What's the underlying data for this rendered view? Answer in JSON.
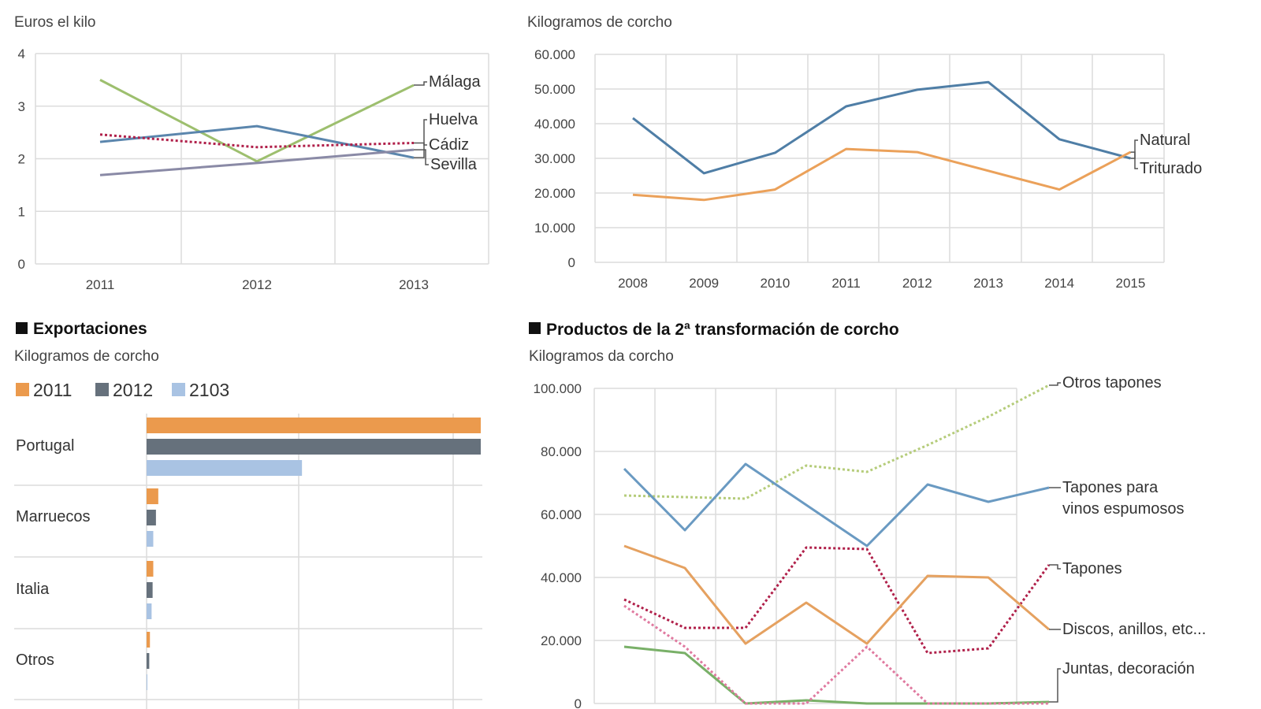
{
  "chart_data": [
    {
      "type": "line",
      "subtitle": "Euros el kilo",
      "categories": [
        "2011",
        "2012",
        "2013"
      ],
      "yticks": [
        "0",
        "1",
        "2",
        "3",
        "4"
      ],
      "ylim": [
        0,
        4
      ],
      "grid": true,
      "series": [
        {
          "name": "Málaga",
          "values": [
            3.5,
            1.95,
            3.4
          ],
          "color": "#9dbf6e",
          "dash": false
        },
        {
          "name": "Huelva",
          "values": [
            2.32,
            2.62,
            2.02
          ],
          "color": "#5b86ad",
          "dash": false
        },
        {
          "name": "Cádiz",
          "values": [
            2.46,
            2.22,
            2.3
          ],
          "color": "#b0204a",
          "dash": true
        },
        {
          "name": "Sevilla",
          "values": [
            1.69,
            1.92,
            2.17
          ],
          "color": "#8a8aa6",
          "dash": false
        }
      ]
    },
    {
      "type": "line",
      "subtitle": "Kilogramos de corcho",
      "categories": [
        "2008",
        "2009",
        "2010",
        "2011",
        "2012",
        "2013",
        "2014",
        "2015"
      ],
      "yticks": [
        "0",
        "10.000",
        "20.000",
        "30.000",
        "40.000",
        "50.000",
        "60.000"
      ],
      "ylim": [
        0,
        60000
      ],
      "grid": true,
      "series": [
        {
          "name": "Natural",
          "values": [
            41600,
            25700,
            31600,
            45000,
            49800,
            52000,
            35500,
            30000
          ],
          "color": "#4f7ea6",
          "dash": false
        },
        {
          "name": "Triturado",
          "values": [
            19500,
            18000,
            21000,
            32700,
            31800,
            26400,
            21000,
            31800
          ],
          "color": "#eba15a",
          "dash": false
        }
      ]
    },
    {
      "type": "bar",
      "title": "Exportaciones",
      "subtitle": "Kilogramos de corcho",
      "orientation": "horizontal",
      "categories": [
        "Portugal",
        "Marruecos",
        "Italia",
        "Otros"
      ],
      "grid": true,
      "legend": "top-left",
      "series": [
        {
          "name": "2011",
          "values": [
            100,
            3.5,
            2,
            1
          ],
          "color": "#eb9a4d"
        },
        {
          "name": "2012",
          "values": [
            100,
            2.8,
            1.8,
            0.8
          ],
          "color": "#66717c"
        },
        {
          "name": "2103",
          "values": [
            46.5,
            2,
            1.5,
            0
          ],
          "color": "#a9c3e3"
        }
      ]
    },
    {
      "type": "line",
      "title": "Productos de la 2ª transformación de corcho",
      "subtitle": "Kilogramos da corcho",
      "yticks": [
        "0",
        "20.000",
        "40.000",
        "60.000",
        "80.000",
        "100.000"
      ],
      "ylim": [
        0,
        100000
      ],
      "grid": true,
      "series": [
        {
          "name": "Otros tapones",
          "values": [
            66000,
            65500,
            65000,
            75500,
            73500,
            82000,
            91000,
            101000
          ],
          "color": "#b5cc7a",
          "dash": true
        },
        {
          "name": "Tapones para vinos espumosos",
          "values": [
            74500,
            55000,
            76000,
            63000,
            50000,
            69500,
            64000,
            68500
          ],
          "color": "#6a9ac2",
          "dash": false
        },
        {
          "name": "Tapones",
          "values": [
            33000,
            24000,
            24000,
            49500,
            49000,
            16000,
            17500,
            44000
          ],
          "color": "#b0204a",
          "dash": true
        },
        {
          "name": "Discos, anillos, etc...",
          "values": [
            50000,
            43000,
            19000,
            32000,
            19000,
            40500,
            40000,
            23500
          ],
          "color": "#e5a160",
          "dash": false
        },
        {
          "name": "Juntas, decoración",
          "values": [
            18000,
            16000,
            0,
            1000,
            0,
            0,
            0,
            500
          ],
          "color": "#79b068",
          "dash": false
        },
        {
          "name": "",
          "values": [
            31000,
            18000,
            0,
            0,
            18000,
            0,
            0,
            0
          ],
          "color": "#e07aa0",
          "dash": true
        }
      ]
    }
  ]
}
